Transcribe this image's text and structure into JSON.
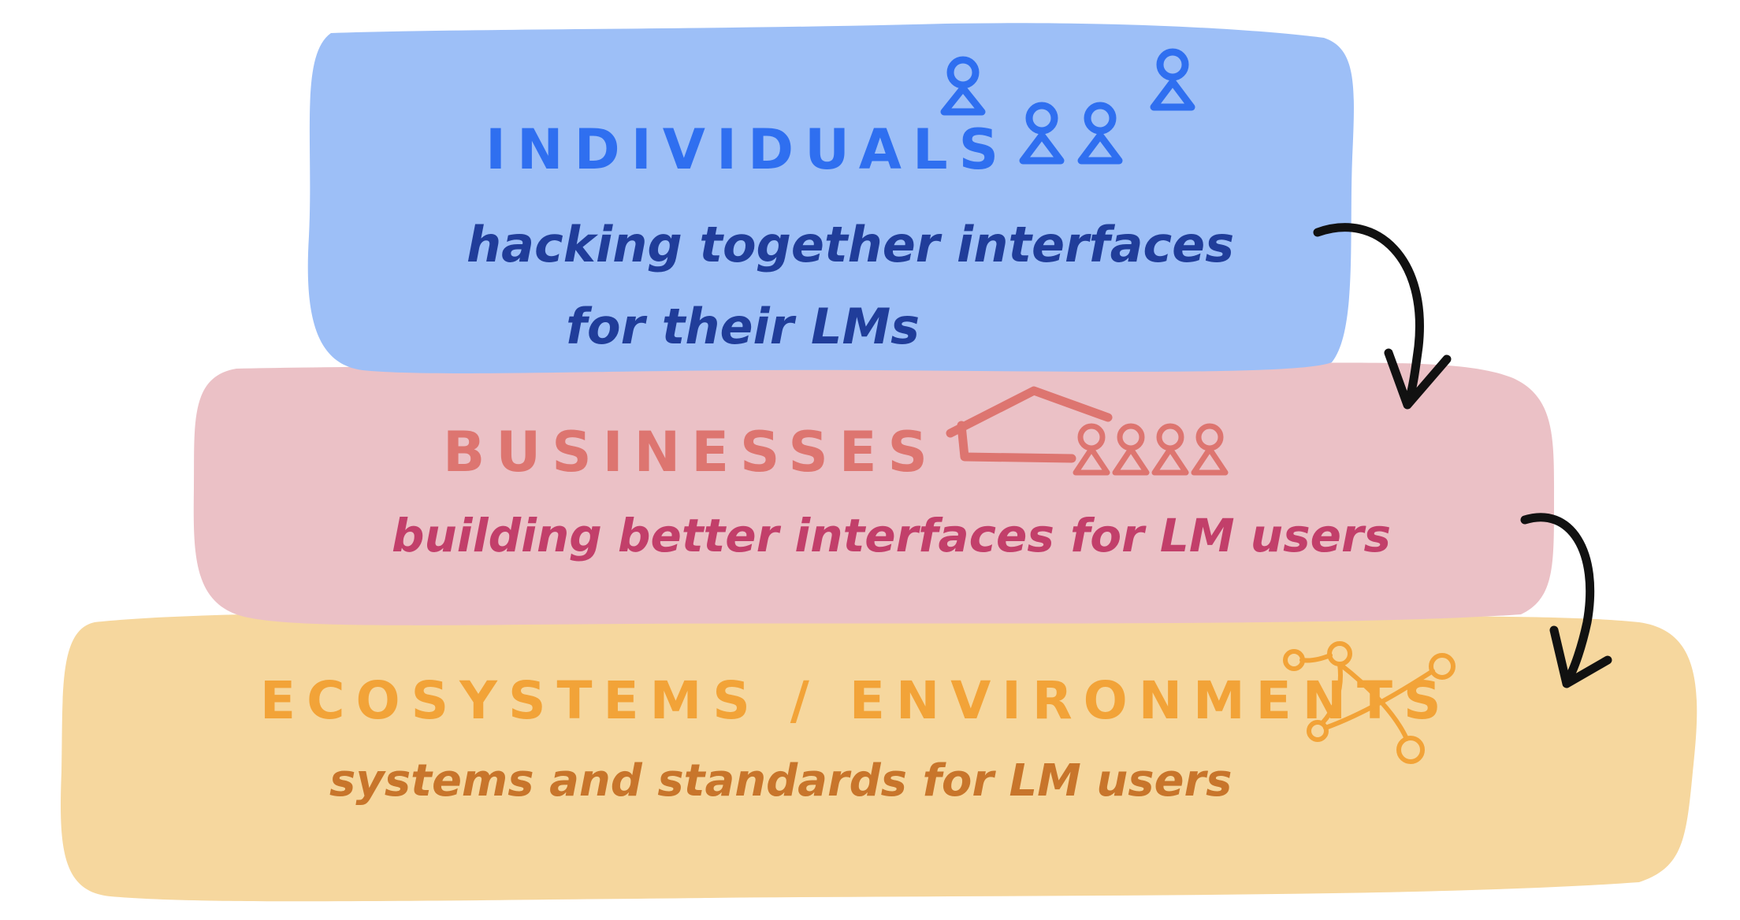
{
  "colors": {
    "individuals_fill": "#9dbff7",
    "individuals_title": "#2f6ff0",
    "individuals_desc": "#203d9a",
    "businesses_fill": "#ebc1c6",
    "businesses_title": "#dd7570",
    "businesses_desc": "#c23f6a",
    "ecosystems_fill": "#f6d79e",
    "ecosystems_title": "#f2a338",
    "ecosystems_desc": "#c8752b",
    "arrow": "#111111"
  },
  "layers": [
    {
      "id": "individuals",
      "title": "INDIVIDUALS",
      "description_lines": [
        "hacking together interfaces",
        "for their LMs"
      ],
      "icon": "people-icon"
    },
    {
      "id": "businesses",
      "title": "BUSINESSES",
      "description_lines": [
        "building better interfaces for LM users"
      ],
      "icon": "building-with-people-icon"
    },
    {
      "id": "ecosystems",
      "title": "ECOSYSTEMS / ENVIRONMENTS",
      "description_lines": [
        "systems and standards for LM users"
      ],
      "icon": "network-graph-icon"
    }
  ],
  "arrows": [
    {
      "from": "individuals",
      "to": "businesses",
      "icon": "curved-arrow-icon"
    },
    {
      "from": "businesses",
      "to": "ecosystems",
      "icon": "curved-arrow-icon"
    }
  ]
}
